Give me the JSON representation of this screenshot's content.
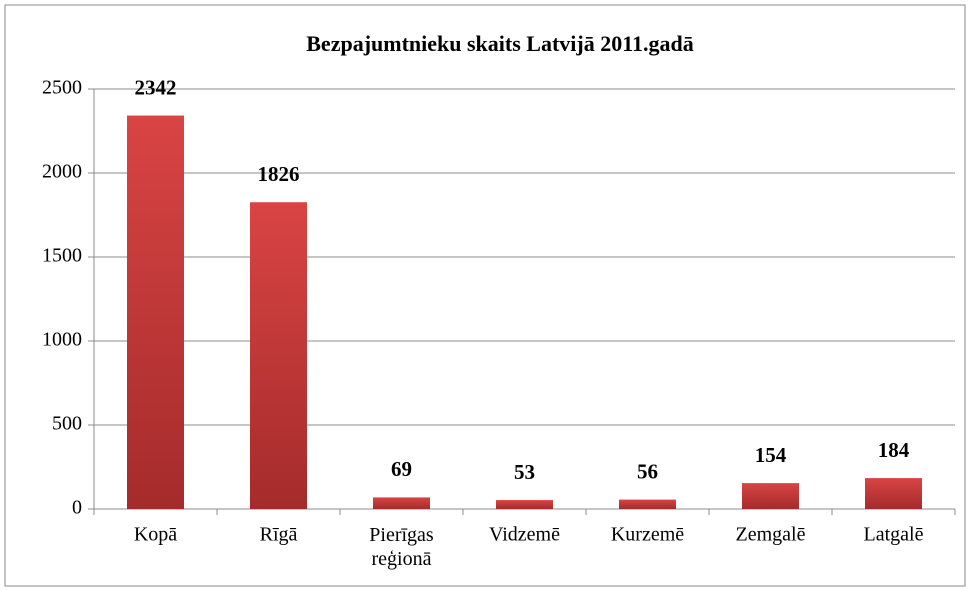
{
  "chart_data": {
    "type": "bar",
    "title": "Bezpajumtnieku skaits Latvijā 2011.gadā",
    "categories": [
      "Kopā",
      "Rīgā",
      "Pierīgas reģionā",
      "Vidzemē",
      "Kurzemē",
      "Zemgalē",
      "Latgalē"
    ],
    "values": [
      2342,
      1826,
      69,
      53,
      56,
      154,
      184
    ],
    "color": "#c83232",
    "ylim": [
      0,
      2500
    ],
    "yticks": [
      0,
      500,
      1000,
      1500,
      2000,
      2500
    ],
    "grid": true
  }
}
